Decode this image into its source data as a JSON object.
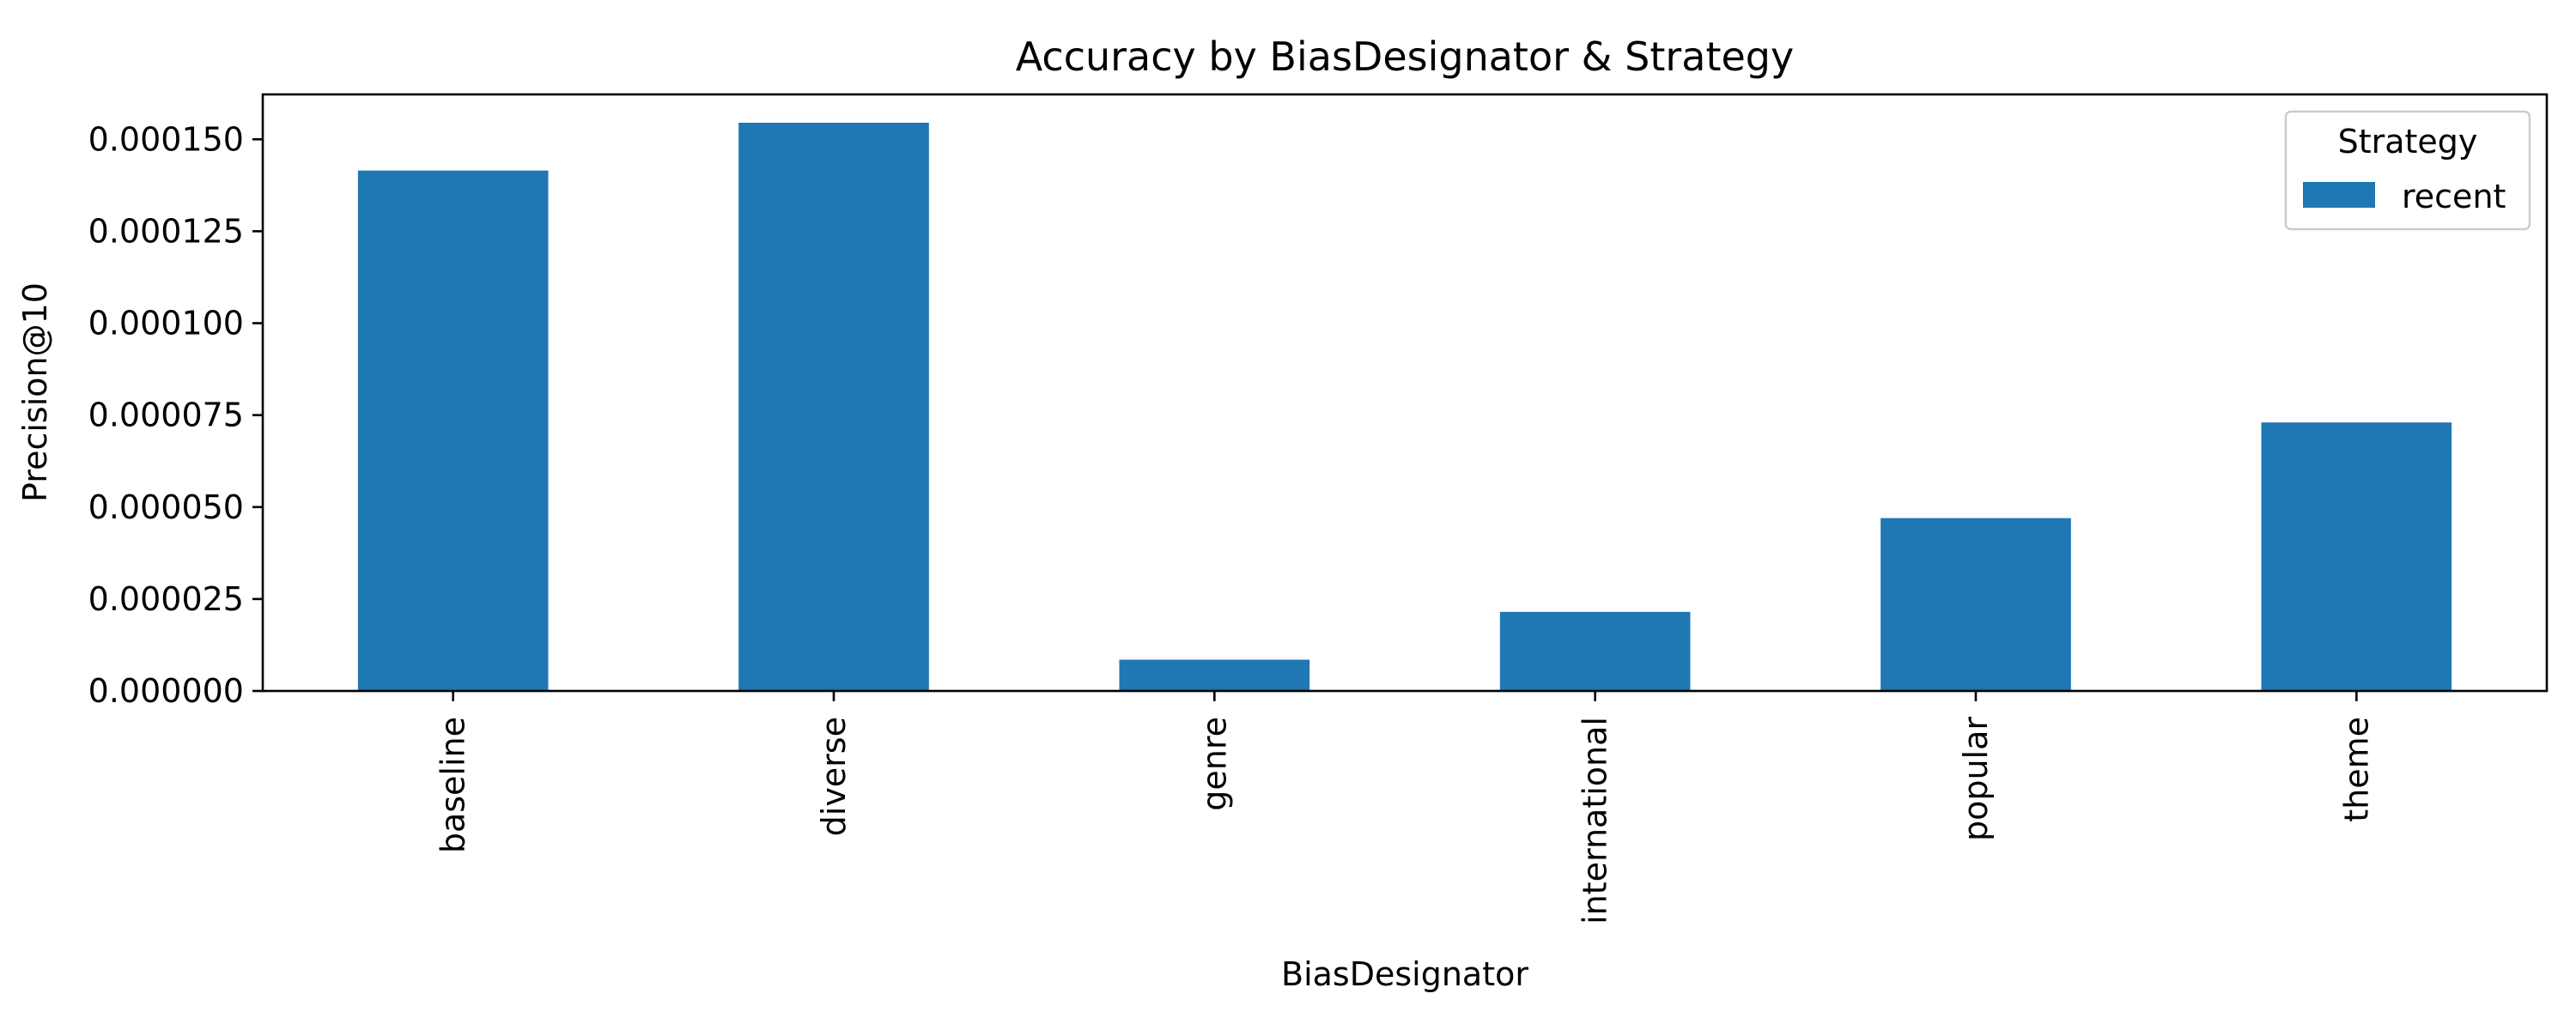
{
  "chart_data": {
    "type": "bar",
    "title": "Accuracy by BiasDesignator & Strategy",
    "xlabel": "BiasDesignator",
    "ylabel": "Precision@10",
    "categories": [
      "baseline",
      "diverse",
      "genre",
      "international",
      "popular",
      "theme"
    ],
    "series": [
      {
        "name": "recent",
        "color": "#1f77b4",
        "values": [
          0.0001415,
          0.0001545,
          8.5e-06,
          2.15e-05,
          4.7e-05,
          7.3e-05
        ]
      }
    ],
    "ylim": [
      0,
      0.0001622
    ],
    "yticks": [
      0,
      2.5e-05,
      5e-05,
      7.5e-05,
      0.0001,
      0.000125,
      0.00015
    ],
    "ytick_labels": [
      "0.000000",
      "0.000025",
      "0.000050",
      "0.000075",
      "0.000100",
      "0.000125",
      "0.000150"
    ],
    "grid": false,
    "legend": {
      "title": "Strategy",
      "placement": "top-right"
    }
  }
}
